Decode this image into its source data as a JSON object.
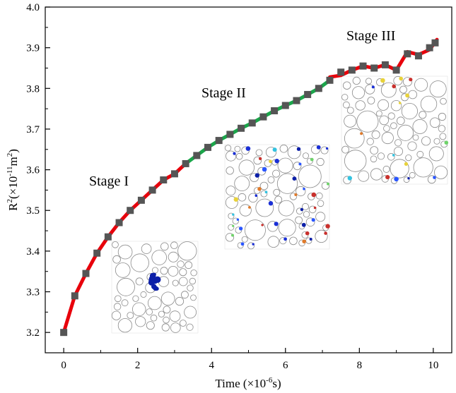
{
  "chart_data": {
    "type": "line",
    "xlabel_main": "Time (×10",
    "xlabel_exp": "-6",
    "xlabel_end": "s)",
    "ylabel_main": "R",
    "ylabel_sup1": "2",
    "ylabel_mid": "(×10",
    "ylabel_sup2": "-11",
    "ylabel_mid2": "m",
    "ylabel_sup3": "2",
    "ylabel_end": ")",
    "xlim": [
      -0.5,
      10.5
    ],
    "ylim": [
      3.15,
      4.0
    ],
    "x_ticks": [
      "0",
      "2",
      "4",
      "6",
      "8",
      "10"
    ],
    "y_ticks": [
      "3.2",
      "3.3",
      "3.4",
      "3.5",
      "3.6",
      "3.7",
      "3.8",
      "3.9",
      "4.0"
    ],
    "grid": false,
    "annotations": [
      "Stage I",
      "Stage II",
      "Stage III"
    ],
    "colors": {
      "stage1": "#e8000b",
      "stage2": "#1aa64a",
      "stage3": "#e8000b",
      "marker": "#555555"
    },
    "points": {
      "x": [
        0.0,
        0.3,
        0.6,
        0.9,
        1.2,
        1.5,
        1.8,
        2.1,
        2.4,
        2.7,
        3.0,
        3.3,
        3.6,
        3.9,
        4.2,
        4.5,
        4.8,
        5.1,
        5.4,
        5.7,
        6.0,
        6.3,
        6.6,
        6.9,
        7.2,
        7.5,
        7.8,
        8.1,
        8.4,
        8.7,
        9.0,
        9.3,
        9.6,
        9.9,
        10.05
      ],
      "y": [
        3.2,
        3.29,
        3.345,
        3.395,
        3.435,
        3.47,
        3.5,
        3.525,
        3.55,
        3.575,
        3.59,
        3.615,
        3.635,
        3.655,
        3.672,
        3.687,
        3.702,
        3.715,
        3.73,
        3.745,
        3.758,
        3.77,
        3.785,
        3.8,
        3.82,
        3.84,
        3.845,
        3.855,
        3.85,
        3.858,
        3.845,
        3.885,
        3.88,
        3.9,
        3.912
      ]
    },
    "stage_breaks": [
      3.3,
      7.2
    ],
    "stage3_line": {
      "x": [
        7.2,
        7.5,
        7.8,
        8.1,
        8.4,
        8.7,
        9.0,
        9.3,
        9.6,
        9.9,
        10.1
      ],
      "y": [
        3.828,
        3.832,
        3.845,
        3.855,
        3.85,
        3.858,
        3.845,
        3.89,
        3.883,
        3.895,
        3.92
      ]
    }
  }
}
